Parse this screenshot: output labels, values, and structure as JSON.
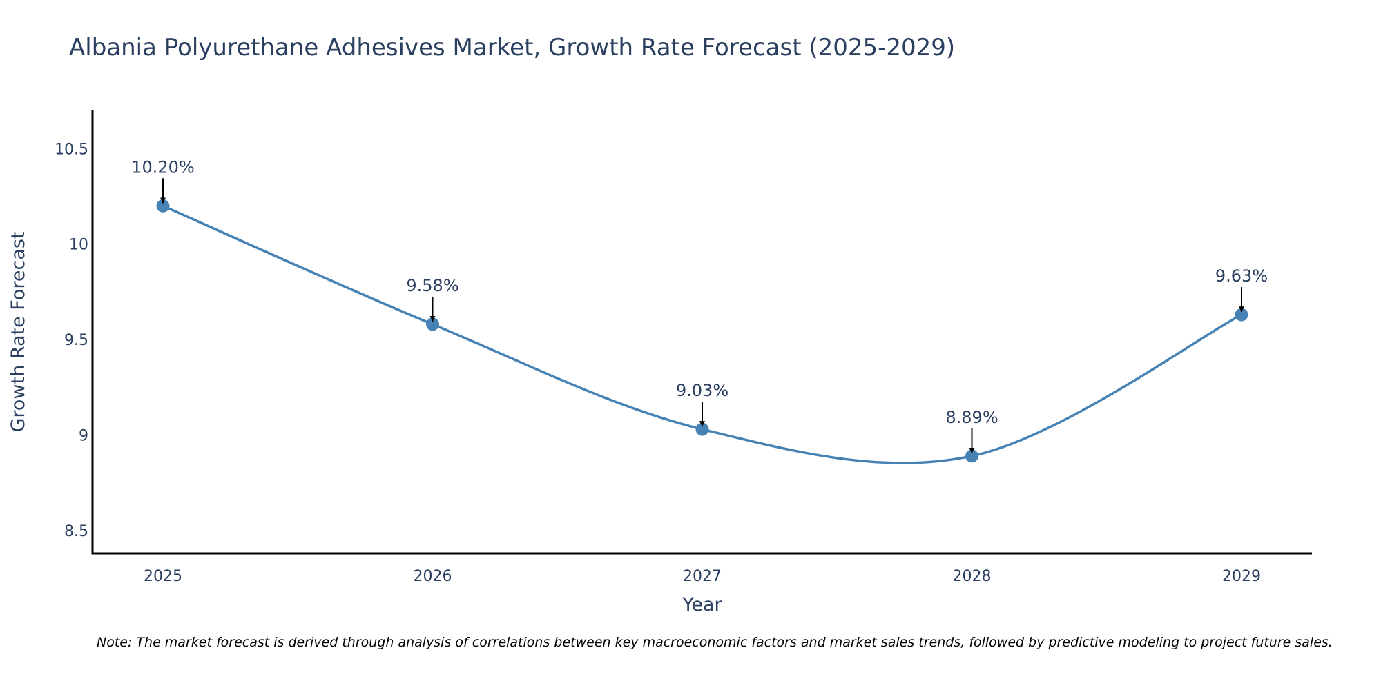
{
  "chart_data": {
    "type": "line",
    "title": "Albania Polyurethane Adhesives Market, Growth Rate Forecast (2025-2029)",
    "xlabel": "Year",
    "ylabel": "Growth Rate Forecast",
    "categories": [
      "2025",
      "2026",
      "2027",
      "2028",
      "2029"
    ],
    "values": [
      10.2,
      9.58,
      9.03,
      8.89,
      9.63
    ],
    "data_labels": [
      "10.20%",
      "9.58%",
      "9.03%",
      "8.89%",
      "9.63%"
    ],
    "ylim": [
      8.38,
      10.7
    ],
    "yticks": [
      8.5,
      9,
      9.5,
      10,
      10.5
    ],
    "ytick_labels": [
      "8.5",
      "9",
      "9.5",
      "10",
      "10.5"
    ],
    "line_shape": "spline",
    "grid": false,
    "colors": {
      "line": "#4682b4",
      "marker": "#4682b4",
      "arrow": "#000000",
      "axis": "#000000",
      "text": "#2a3f5f"
    }
  },
  "note": "Note: The market forecast is derived through analysis of correlations between key macroeconomic factors and market sales trends, followed by predictive modeling to project future sales."
}
